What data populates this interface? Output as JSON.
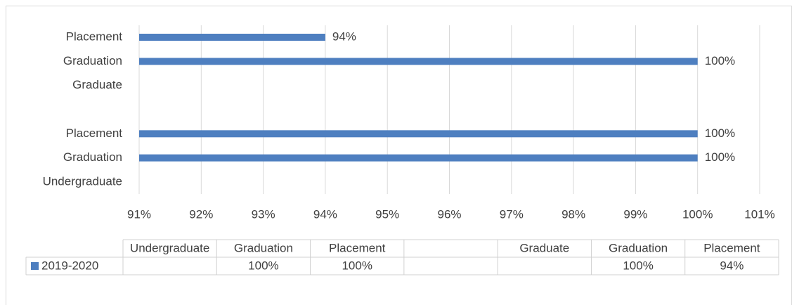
{
  "chart_data": {
    "type": "bar",
    "orientation": "horizontal",
    "categories": [
      "Undergraduate",
      "Graduation",
      "Placement",
      null,
      "Graduate",
      "Graduation",
      "Placement"
    ],
    "series": [
      {
        "name": "2019-2020",
        "color": "#4e7fc0",
        "values": [
          null,
          100,
          100,
          null,
          null,
          100,
          94
        ],
        "value_labels": [
          null,
          "100%",
          "100%",
          null,
          null,
          "100%",
          "94%"
        ]
      }
    ],
    "xlim": [
      91,
      101
    ],
    "xticks": [
      {
        "value": 91,
        "label": "91%"
      },
      {
        "value": 92,
        "label": "92%"
      },
      {
        "value": 93,
        "label": "93%"
      },
      {
        "value": 94,
        "label": "94%"
      },
      {
        "value": 95,
        "label": "95%"
      },
      {
        "value": 96,
        "label": "96%"
      },
      {
        "value": 97,
        "label": "97%"
      },
      {
        "value": 98,
        "label": "98%"
      },
      {
        "value": 99,
        "label": "99%"
      },
      {
        "value": 100,
        "label": "100%"
      },
      {
        "value": 101,
        "label": "101%"
      }
    ],
    "grid": true,
    "data_table": true
  }
}
